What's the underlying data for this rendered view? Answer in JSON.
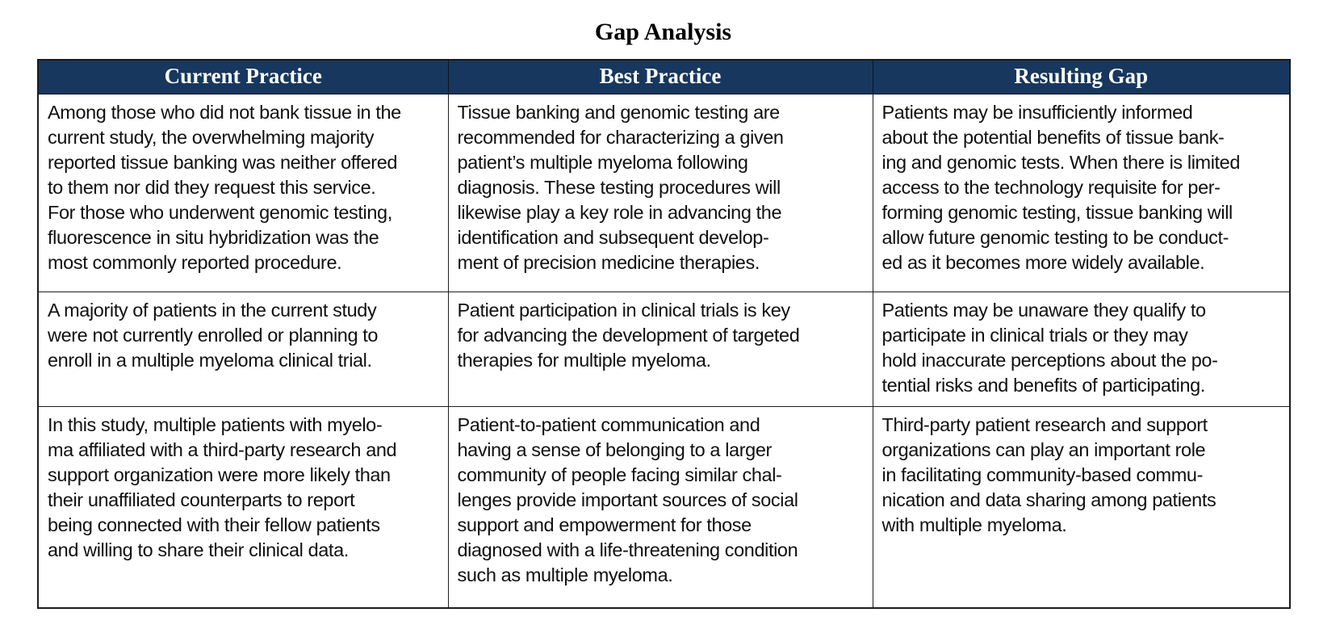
{
  "title": "Gap Analysis",
  "table": {
    "headers": [
      "Current Practice",
      "Best Practice",
      "Resulting Gap"
    ],
    "rows": [
      {
        "cells": [
          "Among those who did not bank tissue in the\ncurrent study, the overwhelming majority\nreported tissue banking was neither offered\nto them nor did they request this service.\nFor those who underwent genomic testing,\nfluorescence in situ hybridization was the\nmost commonly reported procedure.",
          "Tissue banking and genomic testing are\nrecommended for characterizing a given\npatient’s multiple myeloma following\ndiagnosis. These testing procedures will\nlikewise play a key role in advancing the\nidentification and subsequent develop-\nment of precision medicine therapies.",
          "Patients may be insufficiently informed\nabout the potential benefits of tissue bank-\ning and genomic tests. When there is limited\naccess to the technology requisite for per-\nforming genomic testing, tissue banking will\nallow future genomic testing to be conduct-\ned as it becomes more widely available."
        ]
      },
      {
        "cells": [
          "A majority of patients in the current study\nwere not currently enrolled or planning to\nenroll in a multiple myeloma clinical trial.",
          "Patient participation in clinical trials is key\nfor advancing the development of targeted\ntherapies for multiple myeloma.",
          "Patients may be unaware they qualify to\nparticipate in clinical trials or they may\nhold inaccurate perceptions about the po-\ntential risks and benefits of participating."
        ]
      },
      {
        "cells": [
          "In this study, multiple patients with myelo-\nma affiliated with a third-party research and\nsupport organization were more likely than\ntheir unaffiliated counterparts to report\nbeing connected with their fellow patients\nand willing to share their clinical data.",
          "Patient-to-patient communication and\nhaving a sense of belonging to a larger\ncommunity of people facing similar chal-\nlenges provide important sources of social\nsupport and empowerment for those\ndiagnosed with a life-threatening condition\nsuch as multiple myeloma.",
          "Third-party patient research and support\norganizations can play an important role\nin facilitating community-based commu-\nnication and data sharing among patients\nwith multiple myeloma."
        ]
      }
    ]
  },
  "colors": {
    "header_bg": "#17375E",
    "header_text": "#FFFFFF",
    "body_text": "#101010",
    "border": "#1C1C1C",
    "background": "#FFFFFF"
  }
}
